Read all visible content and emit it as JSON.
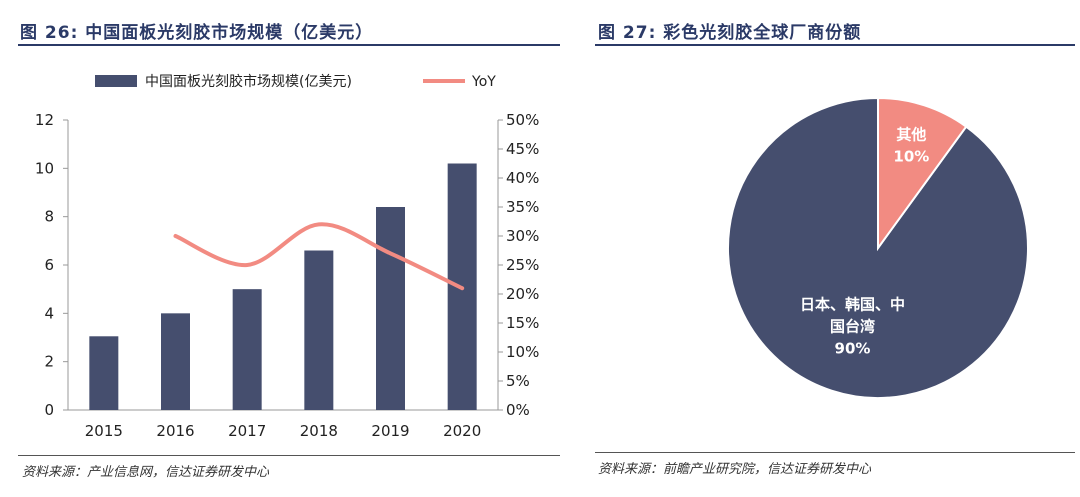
{
  "left_panel": {
    "figure_title": "图 26:  中国面板光刻胶市场规模（亿美元）",
    "source": "资料来源：产业信息网，信达证券研发中心"
  },
  "right_panel": {
    "figure_title": "图 27:  彩色光刻胶全球厂商份额",
    "source": "资料来源：前瞻产业研究院，信达证券研发中心"
  },
  "chart_data": [
    {
      "type": "bar",
      "title": "",
      "categories": [
        "2015",
        "2016",
        "2017",
        "2018",
        "2019",
        "2020"
      ],
      "series": [
        {
          "name": "中国面板光刻胶市场规模(亿美元)",
          "type": "bar",
          "axis": "left",
          "values": [
            3.05,
            4.0,
            5.0,
            6.6,
            8.4,
            10.2
          ],
          "color": "#454e6e"
        },
        {
          "name": "YoY",
          "type": "line",
          "axis": "right",
          "x": [
            "2016",
            "2017",
            "2018",
            "2019",
            "2020"
          ],
          "values": [
            0.3,
            0.25,
            0.32,
            0.27,
            0.21
          ],
          "color": "#f28b82"
        }
      ],
      "y_left": {
        "min": 0,
        "max": 12,
        "ticks": [
          "0",
          "2",
          "4",
          "6",
          "8",
          "10",
          "12"
        ]
      },
      "y_right": {
        "min": 0,
        "max": 0.5,
        "ticks": [
          "0%",
          "5%",
          "10%",
          "15%",
          "20%",
          "25%",
          "30%",
          "35%",
          "40%",
          "45%",
          "50%"
        ]
      },
      "legend": "top",
      "grid": false
    },
    {
      "type": "pie",
      "title": "",
      "slices": [
        {
          "label_lines": [
            "日本、韩国、中",
            "国台湾"
          ],
          "value": 90,
          "value_label": "90%",
          "color": "#454e6e"
        },
        {
          "label_lines": [
            "其他"
          ],
          "value": 10,
          "value_label": "10%",
          "color": "#f28b82"
        }
      ]
    }
  ]
}
